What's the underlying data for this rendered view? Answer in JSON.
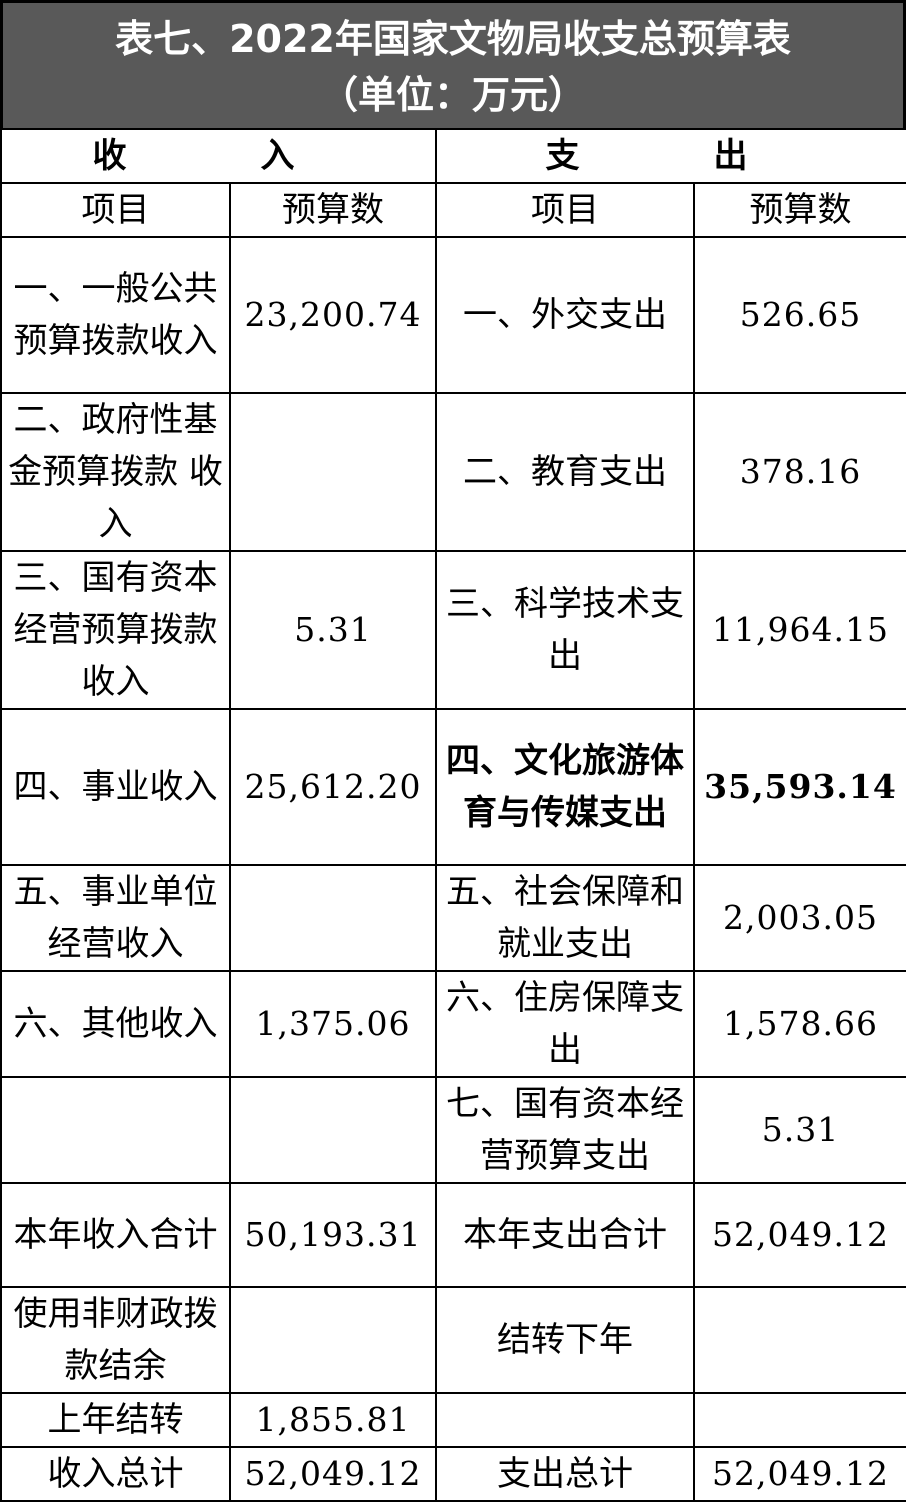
{
  "title": {
    "line1": "表七、2022年国家文物局收支总预算表",
    "line2": "（单位：万元）"
  },
  "sections": {
    "income": "收　入",
    "expense": "支　出"
  },
  "headers": {
    "item": "项目",
    "budget": "预算数",
    "item2": "项目",
    "budget2": "预算数"
  },
  "rows": [
    {
      "in_item": "一、一般公共预算拨款收入",
      "in_val": "23,200.74",
      "ex_item": "一、外交支出",
      "ex_val": "526.65"
    },
    {
      "in_item": "二、政府性基金预算拨款 收入",
      "in_val": "",
      "ex_item": "二、教育支出",
      "ex_val": "378.16"
    },
    {
      "in_item": "三、国有资本经营预算拨款收入",
      "in_val": "5.31",
      "ex_item": "三、科学技术支出",
      "ex_val": "11,964.15"
    },
    {
      "in_item": "四、事业收入",
      "in_val": "25,612.20",
      "ex_item": "四、文化旅游体育与传媒支出",
      "ex_val": "35,593.14"
    },
    {
      "in_item": "五、事业单位经营收入",
      "in_val": "",
      "ex_item": "五、社会保障和就业支出",
      "ex_val": "2,003.05"
    },
    {
      "in_item": "六、其他收入",
      "in_val": "1,375.06",
      "ex_item": "六、住房保障支出",
      "ex_val": "1,578.66"
    },
    {
      "in_item": "",
      "in_val": "",
      "ex_item": "七、国有资本经营预算支出",
      "ex_val": "5.31"
    },
    {
      "in_item": "本年收入合计",
      "in_val": "50,193.31",
      "ex_item": "本年支出合计",
      "ex_val": "52,049.12"
    },
    {
      "in_item": "使用非财政拨款结余",
      "in_val": "",
      "ex_item": "结转下年",
      "ex_val": ""
    },
    {
      "in_item": "上年结转",
      "in_val": "1,855.81",
      "ex_item": "",
      "ex_val": ""
    },
    {
      "in_item": "收入总计",
      "in_val": "52,049.12",
      "ex_item": "支出总计",
      "ex_val": "52,049.12"
    }
  ]
}
